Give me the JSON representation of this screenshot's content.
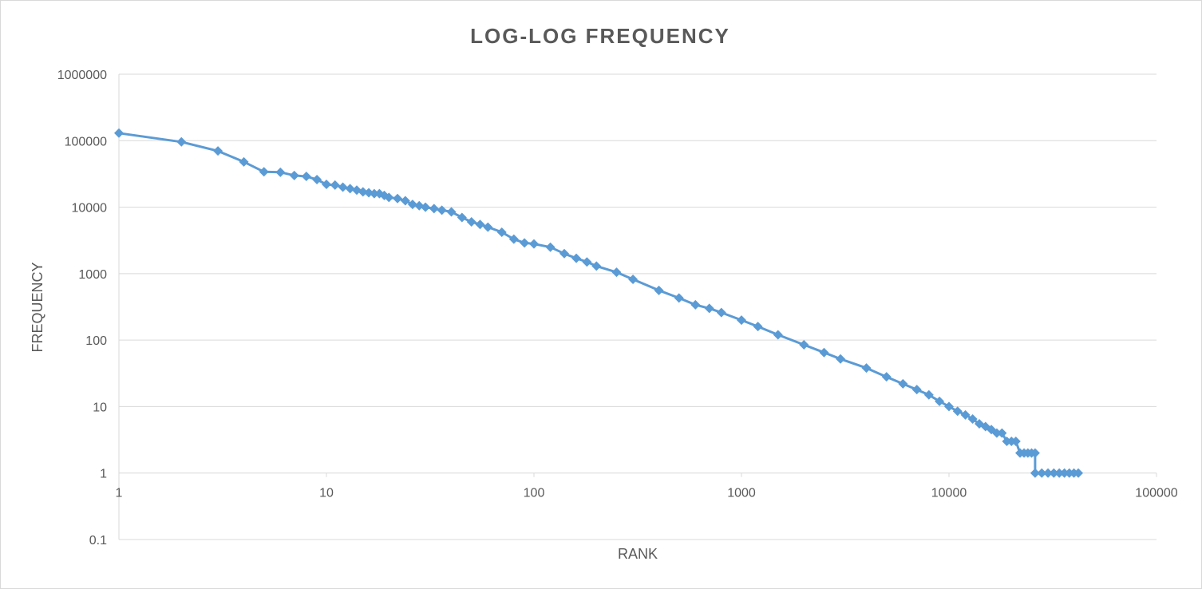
{
  "chart_data": {
    "type": "scatter",
    "title": "LOG-LOG  FREQUENCY",
    "xlabel": "RANK",
    "ylabel": "FREQUENCY",
    "x_scale": "log",
    "y_scale": "log",
    "xlim": [
      1,
      100000
    ],
    "ylim": [
      0.1,
      1000000
    ],
    "x_ticks": [
      "1",
      "10",
      "100",
      "1000",
      "10000",
      "100000"
    ],
    "y_ticks": [
      "1000000",
      "100000",
      "10000",
      "1000",
      "100",
      "10",
      "1",
      "0.1"
    ],
    "grid": true,
    "legend": "none",
    "series_color": "#5b9bd5",
    "series": [
      {
        "x": [
          1,
          2,
          3,
          4,
          5,
          6,
          7,
          8,
          9,
          10,
          11,
          12,
          13,
          14,
          15,
          16,
          17,
          18,
          19,
          20,
          22,
          24,
          26,
          28,
          30,
          33,
          36,
          40,
          45,
          50,
          55,
          60,
          70,
          80,
          90,
          100,
          120,
          140,
          160,
          180,
          200,
          250,
          300,
          400,
          500,
          600,
          700,
          800,
          1000,
          1200,
          1500,
          2000,
          2500,
          3000,
          4000,
          5000,
          6000,
          7000,
          8000,
          9000,
          10000,
          11000,
          12000,
          13000,
          14000,
          15000,
          16000,
          17000,
          18000,
          19000,
          20000,
          21000,
          22000,
          23000,
          24000,
          25000,
          26000,
          26000,
          28000,
          30000,
          32000,
          34000,
          36000,
          38000,
          40000,
          42000
        ],
        "y": [
          130000,
          96000,
          70000,
          48000,
          34000,
          33500,
          30000,
          29000,
          26000,
          22000,
          21500,
          20000,
          19000,
          18000,
          17000,
          16500,
          16000,
          16000,
          15000,
          14000,
          13500,
          12500,
          11000,
          10500,
          10000,
          9500,
          9000,
          8500,
          7000,
          6000,
          5500,
          5000,
          4200,
          3300,
          2900,
          2800,
          2500,
          2000,
          1700,
          1500,
          1300,
          1050,
          820,
          560,
          430,
          340,
          300,
          260,
          200,
          160,
          120,
          85,
          65,
          52,
          38,
          28,
          22,
          18,
          15,
          12,
          10,
          8.5,
          7.5,
          6.5,
          5.5,
          5,
          4.5,
          4,
          4,
          3,
          3,
          3,
          2,
          2,
          2,
          2,
          2,
          1,
          1,
          1,
          1,
          1,
          1,
          1,
          1,
          1
        ]
      }
    ]
  }
}
